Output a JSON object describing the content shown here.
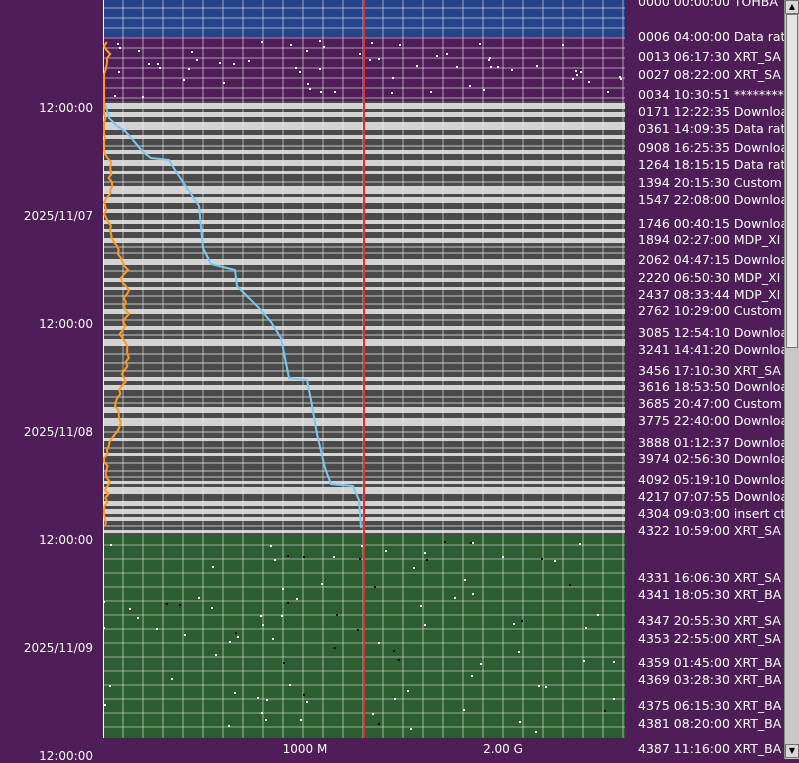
{
  "time_axis": {
    "labels": [
      "12:00:00",
      "2025/11/07",
      "12:00:00",
      "2025/11/08",
      "12:00:00",
      "2025/11/09",
      "12:00:00"
    ]
  },
  "x_axis": {
    "labels": [
      "1000 M",
      "2.00 G"
    ]
  },
  "events": [
    "0000 00:00:00 TOHBA",
    "0006 04:00:00 Data rat",
    "0013 06:17:30 XRT_SA",
    "0027 08:22:00 XRT_SA",
    "0034 10:30:51 ********",
    "0171 12:22:35 Downloa",
    "0361 14:09:35 Data rat",
    "0908 16:25:35 Downloa",
    "1264 18:15:15 Data rat",
    "1394 20:15:30 Custom",
    "1547 22:08:00 Downloa",
    "1746 00:40:15 Downloa",
    "1894 02:27:00 MDP_XI",
    "2062 04:47:15 Downloa",
    "2220 06:50:30 MDP_XI",
    "2437 08:33:44 MDP_XI",
    "2762 10:29:00 Custom",
    "3085 12:54:10 Downloa",
    "3241 14:41:20 Downloa",
    "3456 17:10:30 XRT_SA",
    "3616 18:53:50 Downloa",
    "3685 20:47:00 Custom",
    "3775 22:40:00 Downloa",
    "3888 01:12:37 Downloa",
    "3974 02:56:30 Downloa",
    "4092 05:19:10 Downloa",
    "4217 07:07:55 Downloa",
    "4304 09:03:00 insert ct",
    "4322 10:59:00 XRT_SA",
    "4331 16:06:30 XRT_SA",
    "4341 18:05:30 XRT_BA",
    "4347 20:55:30 XRT_SA",
    "4353 22:55:00 XRT_SA",
    "4359 01:45:00 XRT_BA",
    "4369 03:28:30 XRT_BA",
    "4375 06:15:30 XRT_BA",
    "4381 08:20:00 XRT_BA",
    "4387 11:16:00 XRT_BA"
  ],
  "colors": {
    "background": "#4f1d58",
    "band_blue": "#25448a",
    "band_purple": "#4f1d58",
    "band_gray": "#4a4a4a",
    "band_green": "#2c5e31",
    "limit_line": "#e03030",
    "cumulative_line": "#7cc6f0",
    "rate_line": "#ff9a1f"
  },
  "scrollbar": {
    "up_icon": "arrow-up-icon",
    "down_icon": "arrow-down-icon"
  }
}
